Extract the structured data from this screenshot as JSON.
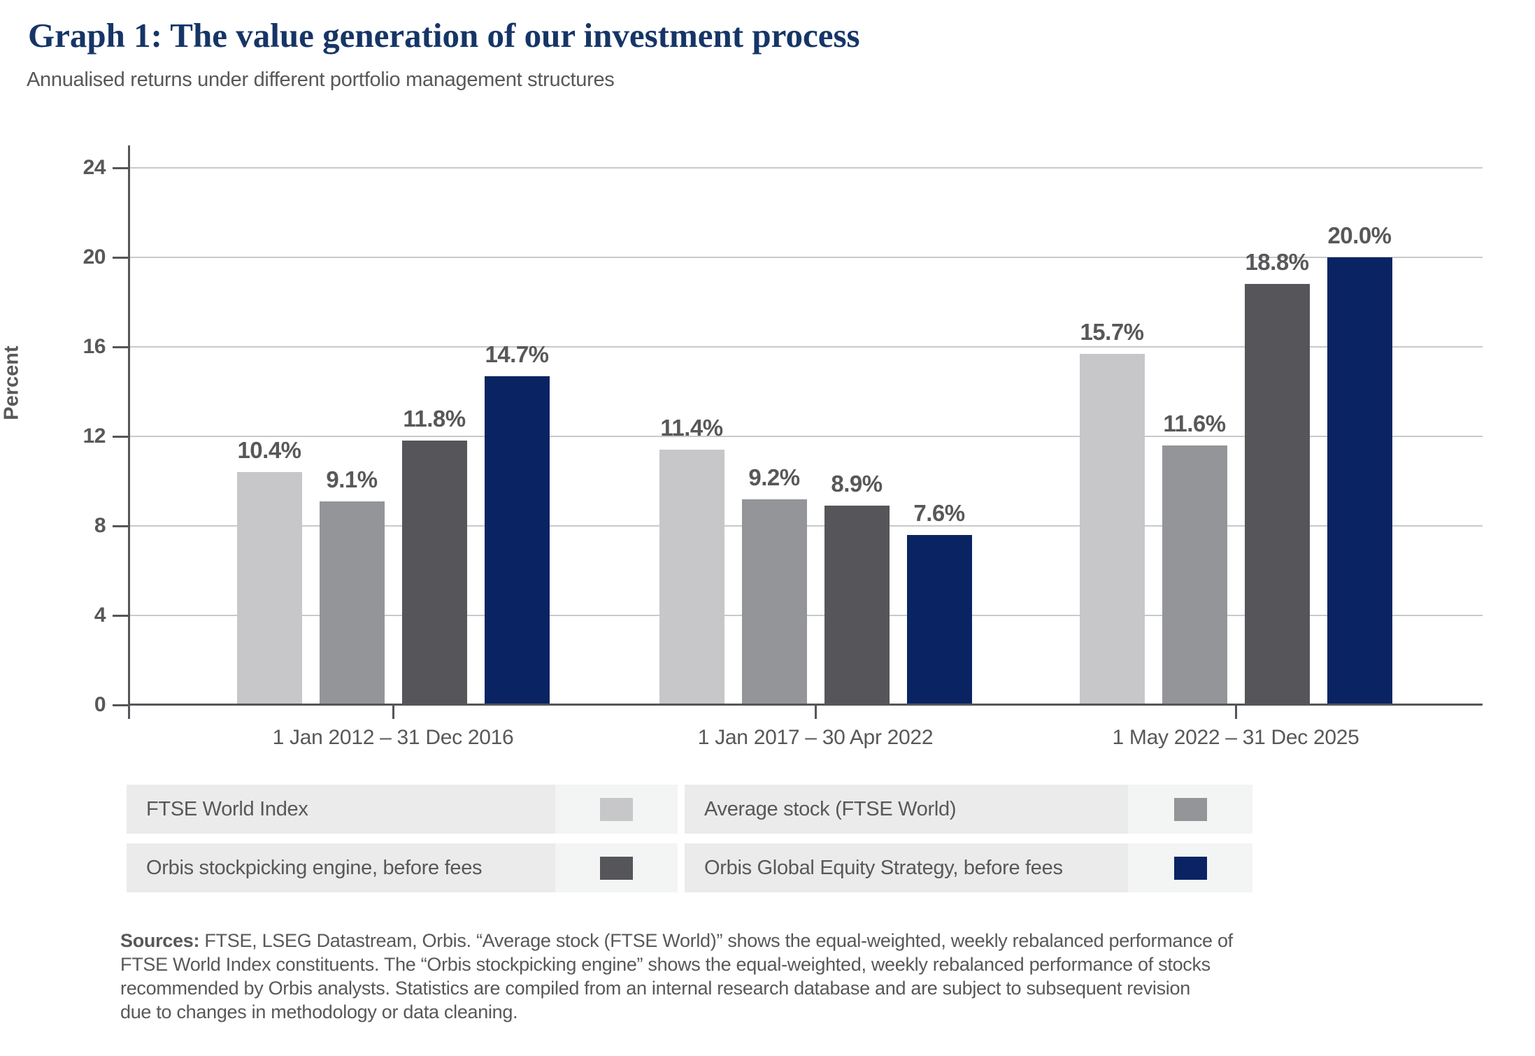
{
  "title": "Graph 1: The value generation of our investment process",
  "subtitle": "Annualised returns under different portfolio management structures",
  "colors": {
    "title": "#163567",
    "gray_text": "#58585a",
    "axis": "#55555a",
    "gridline": "#c8c9cb",
    "legend_text_bg": "#ebebeb",
    "legend_swatch_bg": "#f3f4f4"
  },
  "chart_data": {
    "type": "bar",
    "title": "Graph 1: The value generation of our investment process",
    "subtitle": "Annualised returns under different portfolio management structures",
    "xlabel": "",
    "ylabel": "Percent",
    "ylim": [
      0,
      24
    ],
    "y_ticks": [
      0,
      4,
      8,
      12,
      16,
      20,
      24
    ],
    "grid": true,
    "legend_position": "bottom",
    "value_label_suffix": "%",
    "categories": [
      "1 Jan 2012 – 31 Dec 2016",
      "1 Jan 2017 – 30 Apr 2022",
      "1 May 2022 – 31 Dec 2025"
    ],
    "series": [
      {
        "name": "FTSE World Index",
        "color": "#c7c7c9",
        "values": [
          10.4,
          11.4,
          15.7
        ]
      },
      {
        "name": "Average stock (FTSE World)",
        "color": "#939598",
        "values": [
          9.1,
          9.2,
          11.6
        ]
      },
      {
        "name": "Orbis stockpicking engine, before fees",
        "color": "#55555a",
        "values": [
          11.8,
          8.9,
          18.8
        ]
      },
      {
        "name": "Orbis Global Equity Strategy, before fees",
        "color": "#0a2463",
        "values": [
          14.7,
          7.6,
          20.0
        ]
      }
    ]
  },
  "footnote": {
    "line1_bold": "Sources:",
    "line1_rest": " FTSE, LSEG Datastream, Orbis. “Average stock (FTSE World)” shows the equal-weighted, weekly rebalanced performance of",
    "line2": "FTSE World Index constituents. The “Orbis stockpicking engine” shows the equal-weighted, weekly rebalanced performance of stocks",
    "line3": "recommended by Orbis analysts. Statistics are compiled from an internal research database and are subject to subsequent revision",
    "line4": "due to changes in methodology or data cleaning."
  }
}
